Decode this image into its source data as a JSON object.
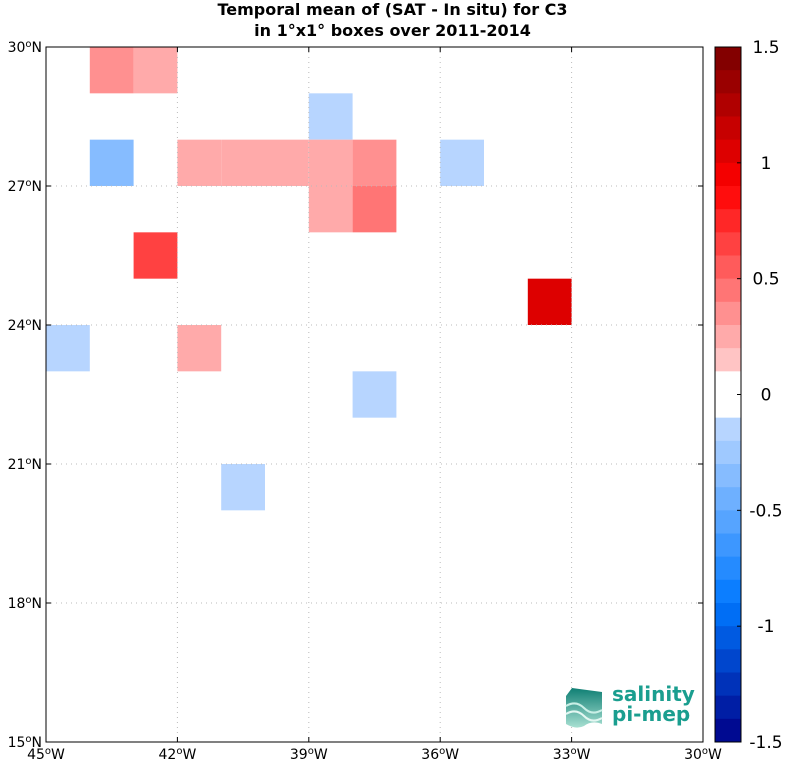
{
  "chart_data": {
    "type": "heatmap",
    "title_line1": "Temporal mean of (SAT - In situ) for C3",
    "title_line2": "in 1°x1° boxes over 2011-2014",
    "xlim": [
      -45,
      -30
    ],
    "ylim": [
      15,
      30
    ],
    "x_ticks": [
      {
        "value": -45,
        "label": "45°W"
      },
      {
        "value": -42,
        "label": "42°W"
      },
      {
        "value": -39,
        "label": "39°W"
      },
      {
        "value": -36,
        "label": "36°W"
      },
      {
        "value": -33,
        "label": "33°W"
      },
      {
        "value": -30,
        "label": "30°W"
      }
    ],
    "y_ticks": [
      {
        "value": 15,
        "label": "15°N"
      },
      {
        "value": 18,
        "label": "18°N"
      },
      {
        "value": 21,
        "label": "21°N"
      },
      {
        "value": 24,
        "label": "24°N"
      },
      {
        "value": 27,
        "label": "27°N"
      },
      {
        "value": 30,
        "label": "30°N"
      }
    ],
    "grid": true,
    "cells": [
      {
        "lon": -44,
        "lat": 29,
        "value": 0.35
      },
      {
        "lon": -43,
        "lat": 29,
        "value": 0.2
      },
      {
        "lon": -39,
        "lat": 28,
        "value": -0.2
      },
      {
        "lon": -44,
        "lat": 27,
        "value": -0.35
      },
      {
        "lon": -42,
        "lat": 27,
        "value": 0.2
      },
      {
        "lon": -41,
        "lat": 27,
        "value": 0.2
      },
      {
        "lon": -40,
        "lat": 27,
        "value": 0.2
      },
      {
        "lon": -39,
        "lat": 27,
        "value": 0.25
      },
      {
        "lon": -38,
        "lat": 27,
        "value": 0.35
      },
      {
        "lon": -36,
        "lat": 27,
        "value": -0.2
      },
      {
        "lon": -39,
        "lat": 26,
        "value": 0.25
      },
      {
        "lon": -38,
        "lat": 26,
        "value": 0.45
      },
      {
        "lon": -43,
        "lat": 25,
        "value": 0.6
      },
      {
        "lon": -34,
        "lat": 24,
        "value": 1.05
      },
      {
        "lon": -45,
        "lat": 23,
        "value": -0.2
      },
      {
        "lon": -42,
        "lat": 23,
        "value": 0.2
      },
      {
        "lon": -38,
        "lat": 22,
        "value": -0.2
      },
      {
        "lon": -41,
        "lat": 20,
        "value": -0.2
      }
    ],
    "colorbar": {
      "min": -1.5,
      "max": 1.5,
      "levels": 30,
      "tick_values": [
        1.5,
        1,
        0.5,
        0,
        -0.5,
        -1,
        -1.5
      ],
      "tick_labels": [
        "1.5",
        "1",
        "0.5",
        "0",
        "-0.5",
        "-1",
        "-1.5"
      ]
    }
  },
  "logo": {
    "line1": "salinity",
    "line2": "pi-mep",
    "color": "#1a9e8f"
  }
}
